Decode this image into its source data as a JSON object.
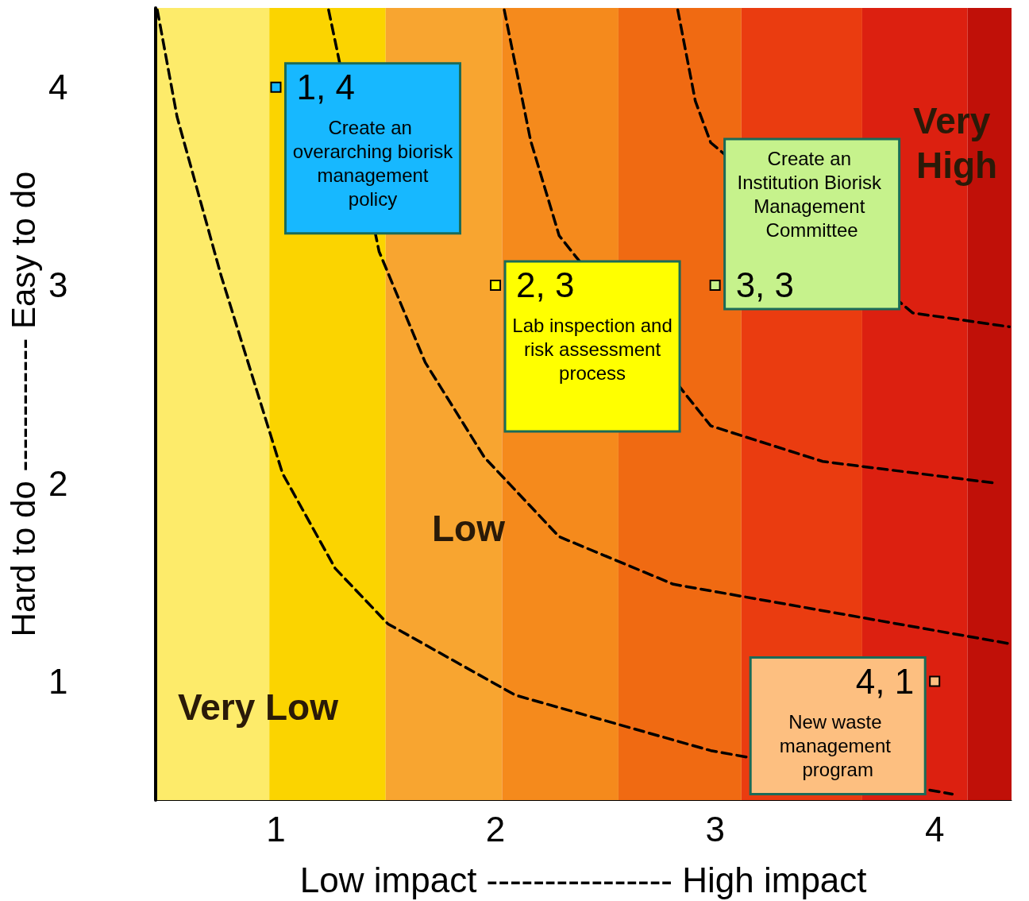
{
  "chart_data": {
    "type": "scatter",
    "xlabel": "Low impact ---------------- High impact",
    "ylabel": "Hard to do ------------ Easy to do",
    "xlim": [
      0.45,
      4.35
    ],
    "xticks": [
      1,
      2,
      3,
      4
    ],
    "ylim": [
      0.4,
      4.4
    ],
    "yticks": [
      1,
      2,
      3,
      4
    ],
    "grid": false,
    "legend": false,
    "series": [
      {
        "type": "line",
        "color": "#000000",
        "line_style": "dashed",
        "marker": "none",
        "x": [
          0.46,
          0.55,
          0.75,
          1.03,
          1.27,
          1.51,
          2.09,
          2.98,
          4.08
        ],
        "values": [
          4.39,
          3.85,
          3.05,
          2.05,
          1.57,
          1.29,
          0.93,
          0.65,
          0.43
        ]
      },
      {
        "type": "line",
        "color": "#000000",
        "line_style": "dashed",
        "marker": "none",
        "x": [
          1.24,
          1.47,
          1.68,
          1.95,
          2.29,
          2.81,
          4.34
        ],
        "values": [
          4.39,
          3.17,
          2.61,
          2.13,
          1.73,
          1.49,
          1.19
        ]
      },
      {
        "type": "line",
        "color": "#000000",
        "line_style": "dashed",
        "marker": "none",
        "x": [
          2.04,
          2.16,
          2.29,
          2.98,
          3.49,
          4.28
        ],
        "values": [
          4.39,
          3.73,
          3.25,
          2.29,
          2.11,
          2.0
        ]
      },
      {
        "type": "line",
        "color": "#000000",
        "line_style": "dashed",
        "marker": "none",
        "x": [
          2.83,
          2.91,
          2.98,
          3.9,
          4.34
        ],
        "values": [
          4.39,
          3.93,
          3.72,
          2.86,
          2.79
        ]
      },
      {
        "name": "Create an overarching biorisk management policy",
        "color": "#17b8ff",
        "marker": "square",
        "x": [
          1
        ],
        "values": [
          4
        ],
        "value_labels": [
          "1, 4"
        ]
      },
      {
        "name": "Lab inspection and risk assessment process",
        "color": "#ffff00",
        "marker": "square",
        "x": [
          2
        ],
        "values": [
          3
        ],
        "value_labels": [
          "2, 3"
        ]
      },
      {
        "name": "Create an Institution Biorisk Management Committee",
        "color": "#c6f28c",
        "marker": "square",
        "x": [
          3
        ],
        "values": [
          3
        ],
        "value_labels": [
          "3, 3"
        ]
      },
      {
        "name": "New waste management program",
        "color": "#fdbf80",
        "marker": "square",
        "x": [
          4
        ],
        "values": [
          1
        ],
        "value_labels": [
          "4, 1"
        ]
      }
    ],
    "bands": [
      {
        "axis": "x",
        "from": 0.45,
        "to": 0.97,
        "color": "#fdeb6a"
      },
      {
        "axis": "x",
        "from": 0.97,
        "to": 1.5,
        "color": "#fbd400"
      },
      {
        "axis": "x",
        "from": 1.5,
        "to": 2.03,
        "color": "#f8a530"
      },
      {
        "axis": "x",
        "from": 2.03,
        "to": 2.56,
        "color": "#f58a1c"
      },
      {
        "axis": "x",
        "from": 2.56,
        "to": 3.12,
        "color": "#f06a12"
      },
      {
        "axis": "x",
        "from": 3.12,
        "to": 3.67,
        "color": "#ea3c10"
      },
      {
        "axis": "x",
        "from": 3.67,
        "to": 4.15,
        "color": "#dc2010"
      },
      {
        "axis": "x",
        "from": 4.15,
        "to": 4.35,
        "color": "#c01008"
      }
    ],
    "annotations": [
      "Very Low",
      "Low",
      "Very High"
    ]
  }
}
